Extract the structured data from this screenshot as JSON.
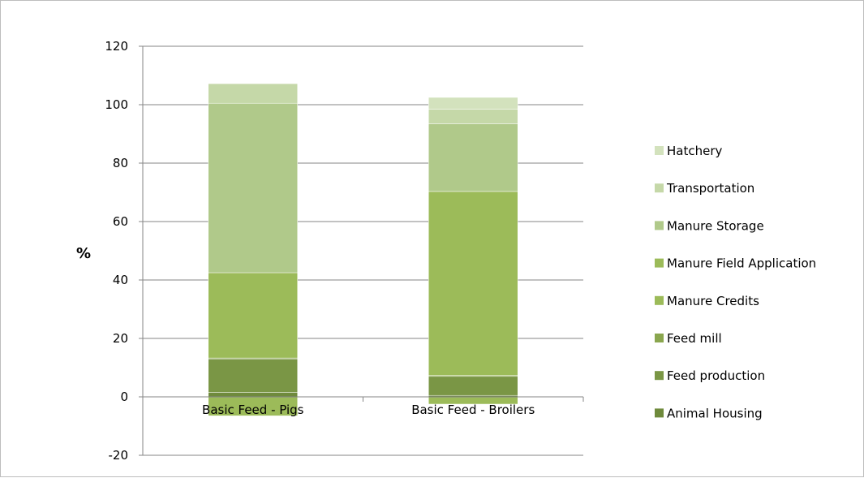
{
  "chart_data": {
    "type": "bar",
    "stacked": true,
    "categories": [
      "Basic Feed - Pigs",
      "Basic Feed - Broilers"
    ],
    "ylabel": "%",
    "ylim": [
      -20,
      120
    ],
    "yticks": [
      -20,
      0,
      20,
      40,
      60,
      80,
      100,
      120
    ],
    "grid": true,
    "legend_position": "right",
    "series": [
      {
        "name": "Animal Housing",
        "values": [
          1.5,
          0.5
        ],
        "color": "#6f8a3c"
      },
      {
        "name": "Feed production",
        "values": [
          11.5,
          6.5
        ],
        "color": "#7a9645"
      },
      {
        "name": "Feed mill",
        "values": [
          0.3,
          0.3
        ],
        "color": "#8aa64e"
      },
      {
        "name": "Manure Credits",
        "values": [
          -6.5,
          -2.5
        ],
        "color": "#9cbb59"
      },
      {
        "name": "Manure Field Application",
        "values": [
          29.2,
          63.0
        ],
        "color": "#9cbb59"
      },
      {
        "name": "Manure Storage",
        "values": [
          58.0,
          23.2
        ],
        "color": "#b0c98a"
      },
      {
        "name": "Transportation",
        "values": [
          6.7,
          5.0
        ],
        "color": "#c5d8a8"
      },
      {
        "name": "Hatchery",
        "values": [
          0,
          4.0
        ],
        "color": "#d3e2bd"
      }
    ],
    "legend_order": [
      "Hatchery",
      "Transportation",
      "Manure Storage",
      "Manure Field Application",
      "Manure Credits",
      "Feed mill",
      "Feed production",
      "Animal Housing"
    ]
  }
}
